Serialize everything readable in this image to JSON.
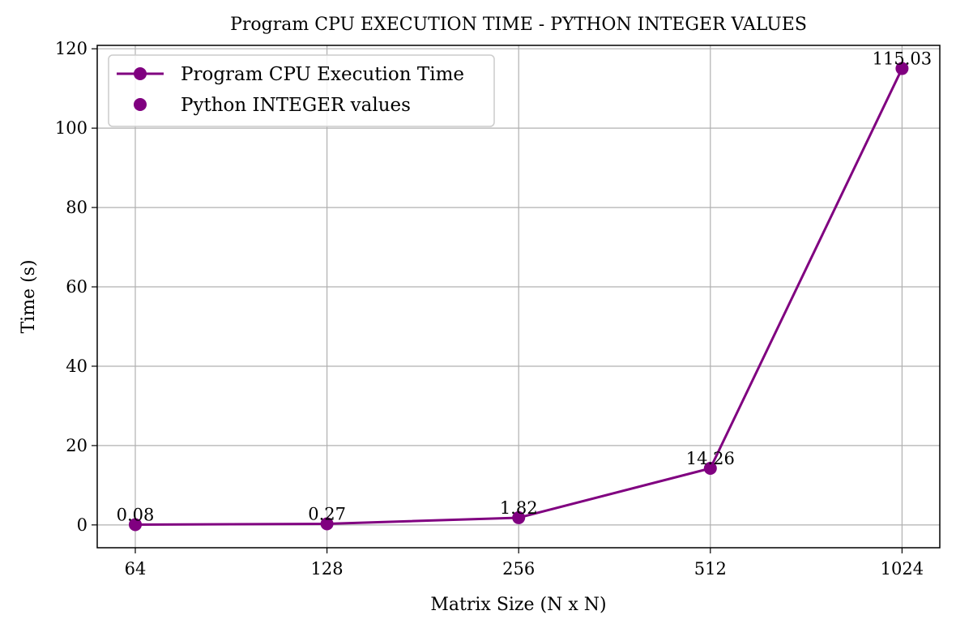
{
  "chart_data": {
    "type": "line",
    "title": "Program CPU EXECUTION TIME - PYTHON INTEGER VALUES",
    "xlabel": "Matrix Size (N x N)",
    "ylabel": "Time (s)",
    "categories": [
      "64",
      "128",
      "256",
      "512",
      "1024"
    ],
    "series": [
      {
        "name": "Program CPU Execution Time",
        "values": [
          0.08,
          0.27,
          1.82,
          14.26,
          115.03
        ],
        "color": "#800080",
        "marker": "circle"
      }
    ],
    "scatter_legend_name": "Python INTEGER values",
    "data_labels": [
      "0.08",
      "0.27",
      "1.82",
      "14.26",
      "115.03"
    ],
    "yticks": [
      0,
      20,
      40,
      60,
      80,
      100,
      120
    ],
    "ylim": [
      -5.75,
      120.86
    ],
    "grid": true,
    "legend_position": "top-left"
  }
}
